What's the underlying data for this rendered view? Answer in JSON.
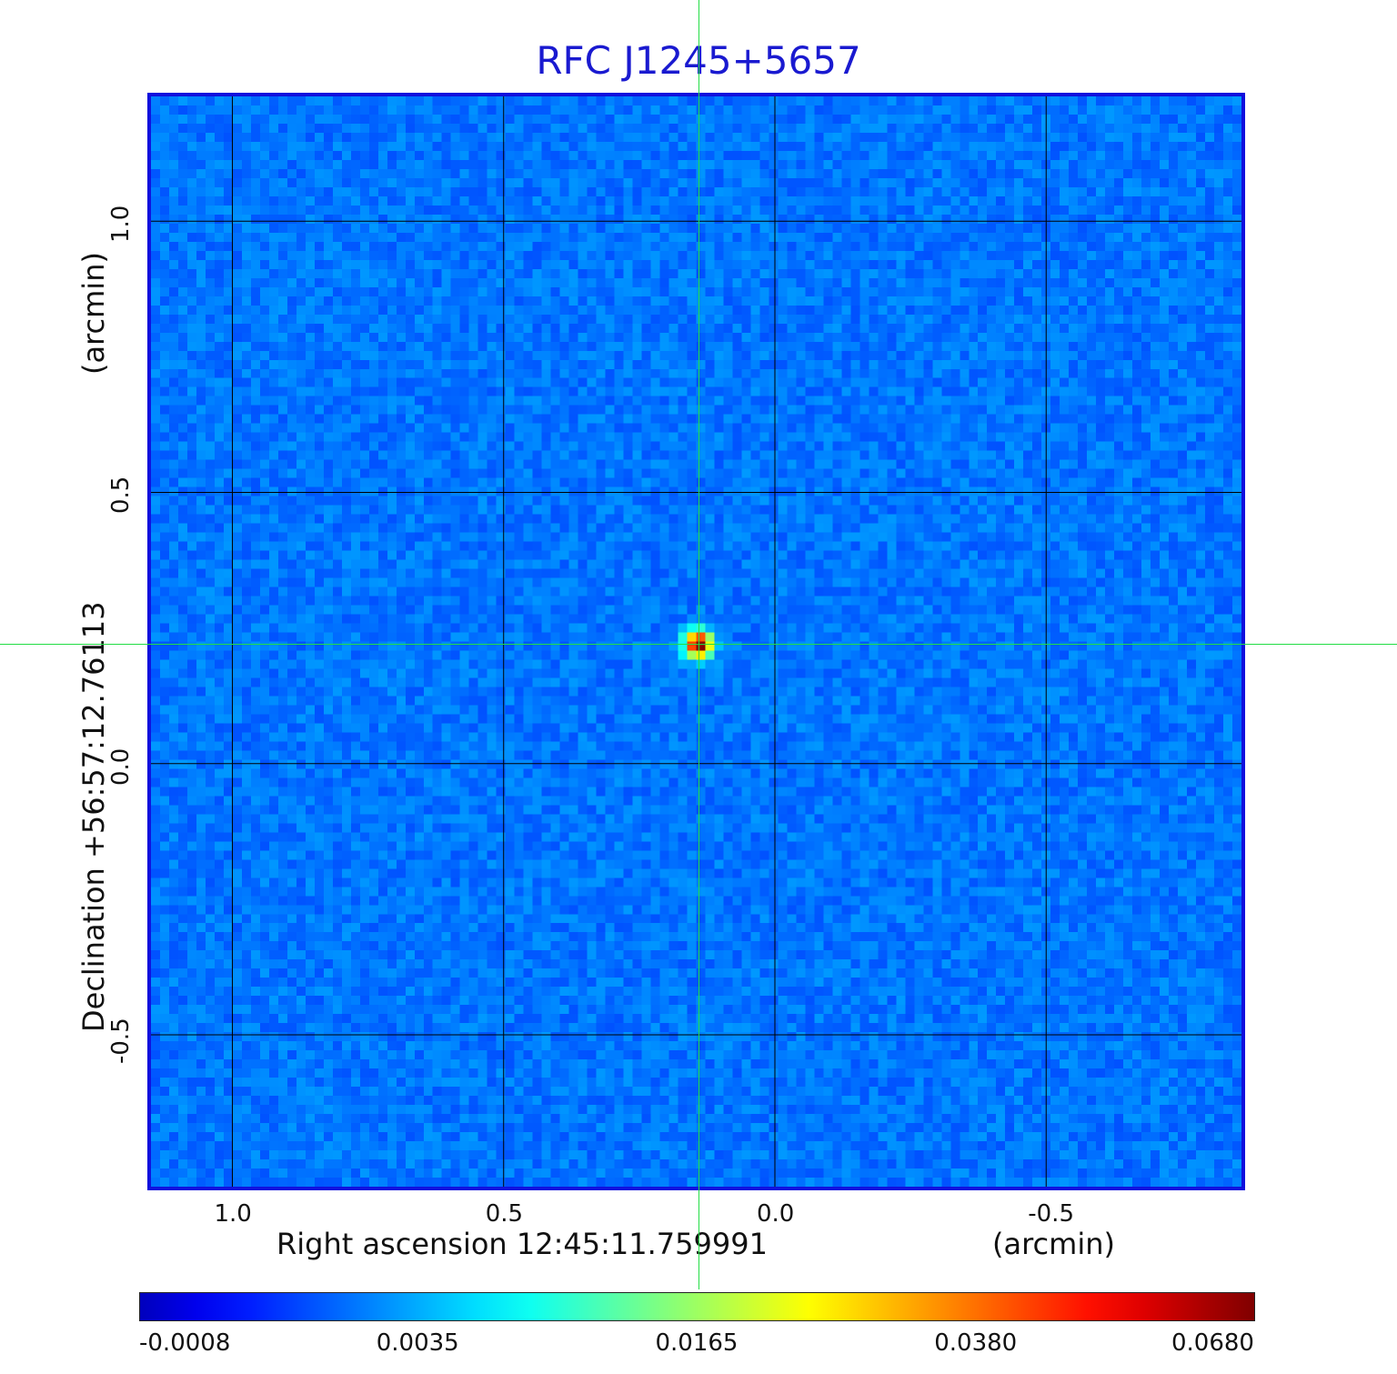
{
  "chart_data": {
    "type": "heatmap",
    "title": "RFC J1245+5657",
    "xlabel": "Right ascension  12:45:11.759991",
    "xlabel_unit": "(arcmin)",
    "ylabel": "Declination  +56:57:12.76113",
    "ylabel_unit": "(arcmin)",
    "xlim": [
      1.15,
      -0.86
    ],
    "ylim": [
      -0.78,
      1.23
    ],
    "x_ticks": [
      1.0,
      0.5,
      0.0,
      -0.5
    ],
    "x_tick_labels": [
      "1.0",
      "0.5",
      "0.0",
      "-0.5"
    ],
    "y_ticks": [
      1.0,
      0.5,
      0.0,
      -0.5
    ],
    "y_tick_labels": [
      "1.0",
      "0.5",
      "0.0",
      "-0.5"
    ],
    "grid": true,
    "source_peak": {
      "x": 0.14,
      "y": 0.22,
      "value": 0.068
    },
    "crosshair": {
      "x": 0.14,
      "y": 0.22
    },
    "colorbar": {
      "tick_labels": [
        "-0.0008",
        "0.0035",
        "0.0165",
        "0.0380",
        "0.0680"
      ],
      "tick_values": [
        -0.0008,
        0.0035,
        0.0165,
        0.038,
        0.068
      ],
      "colormap": "jet"
    },
    "colors": {
      "title": "#1a1ad0",
      "frame": "#1010dd",
      "background_map": "#1b3cf5",
      "crosshair": "#22dd44",
      "grid": "#000000"
    }
  }
}
